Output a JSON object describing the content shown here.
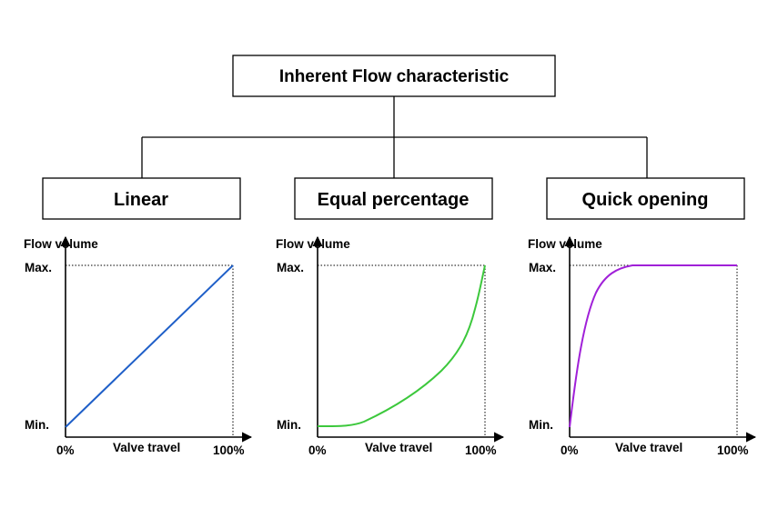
{
  "root": {
    "label": "Inherent Flow characteristic"
  },
  "charts": [
    {
      "id": "linear",
      "heading": "Linear",
      "y_axis_label": "Flow volume",
      "x_axis_label": "Valve travel",
      "y_max_label": "Max.",
      "y_min_label": "Min.",
      "x_min_label": "0%",
      "x_max_label": "100%",
      "curve_color": "#1f5fc8",
      "curve": "linear"
    },
    {
      "id": "equal-percentage",
      "heading": "Equal percentage",
      "y_axis_label": "Flow volume",
      "x_axis_label": "Valve travel",
      "y_max_label": "Max.",
      "y_min_label": "Min.",
      "x_min_label": "0%",
      "x_max_label": "100%",
      "curve_color": "#3cc83c",
      "curve": "equal-percentage"
    },
    {
      "id": "quick-opening",
      "heading": "Quick opening",
      "y_axis_label": "Flow volume",
      "x_axis_label": "Valve travel",
      "y_max_label": "Max.",
      "y_min_label": "Min.",
      "x_min_label": "0%",
      "x_max_label": "100%",
      "curve_color": "#a020d8",
      "curve": "quick-opening"
    }
  ]
}
